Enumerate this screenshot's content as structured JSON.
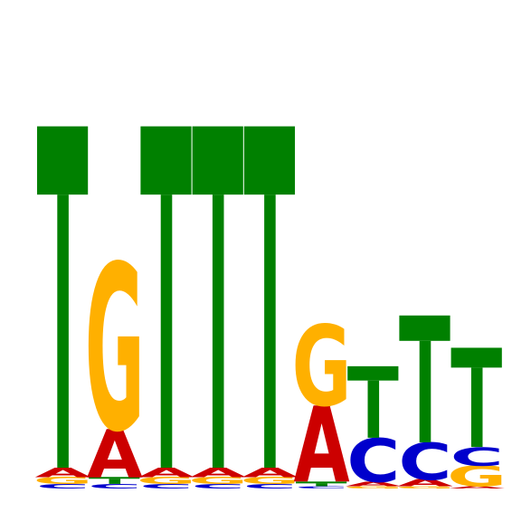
{
  "chart_data": {
    "type": "sequence-logo",
    "title": "",
    "xlabel": "",
    "ylabel": "",
    "ylim": [
      0,
      2
    ],
    "colors": {
      "A": "#cc0000",
      "C": "#0000cc",
      "G": "#ffb000",
      "T": "#008000"
    },
    "positions": [
      {
        "index": 1,
        "stack": [
          {
            "base": "C",
            "height": 0.02
          },
          {
            "base": "G",
            "height": 0.03
          },
          {
            "base": "A",
            "height": 0.04
          },
          {
            "base": "T",
            "height": 1.48
          }
        ]
      },
      {
        "index": 2,
        "stack": [
          {
            "base": "C",
            "height": 0.02
          },
          {
            "base": "T",
            "height": 0.03
          },
          {
            "base": "A",
            "height": 0.21
          },
          {
            "base": "G",
            "height": 0.72
          }
        ]
      },
      {
        "index": 3,
        "stack": [
          {
            "base": "C",
            "height": 0.02
          },
          {
            "base": "G",
            "height": 0.03
          },
          {
            "base": "A",
            "height": 0.04
          },
          {
            "base": "T",
            "height": 1.48
          }
        ]
      },
      {
        "index": 4,
        "stack": [
          {
            "base": "C",
            "height": 0.02
          },
          {
            "base": "G",
            "height": 0.03
          },
          {
            "base": "A",
            "height": 0.04
          },
          {
            "base": "T",
            "height": 1.48
          }
        ]
      },
      {
        "index": 5,
        "stack": [
          {
            "base": "C",
            "height": 0.02
          },
          {
            "base": "G",
            "height": 0.03
          },
          {
            "base": "A",
            "height": 0.04
          },
          {
            "base": "T",
            "height": 1.48
          }
        ]
      },
      {
        "index": 6,
        "stack": [
          {
            "base": "C",
            "height": 0.01
          },
          {
            "base": "T",
            "height": 0.02
          },
          {
            "base": "A",
            "height": 0.33
          },
          {
            "base": "G",
            "height": 0.35
          }
        ]
      },
      {
        "index": 7,
        "stack": [
          {
            "base": "G",
            "height": 0.01
          },
          {
            "base": "A",
            "height": 0.02
          },
          {
            "base": "C",
            "height": 0.19
          },
          {
            "base": "T",
            "height": 0.31
          }
        ]
      },
      {
        "index": 8,
        "stack": [
          {
            "base": "G",
            "height": 0.01
          },
          {
            "base": "A",
            "height": 0.03
          },
          {
            "base": "C",
            "height": 0.16
          },
          {
            "base": "T",
            "height": 0.55
          }
        ]
      },
      {
        "index": 9,
        "stack": [
          {
            "base": "A",
            "height": 0.01
          },
          {
            "base": "G",
            "height": 0.09
          },
          {
            "base": "C",
            "height": 0.08
          },
          {
            "base": "T",
            "height": 0.43
          }
        ]
      }
    ]
  }
}
